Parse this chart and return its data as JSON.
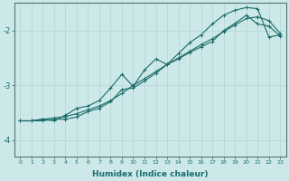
{
  "xlabel": "Humidex (Indice chaleur)",
  "background_color": "#cce8e8",
  "grid_color": "#b8d8d8",
  "line_color": "#1a6b6b",
  "xlim": [
    -0.5,
    23.5
  ],
  "ylim": [
    -4.3,
    -1.5
  ],
  "yticks": [
    -4,
    -3,
    -2
  ],
  "xticks": [
    0,
    1,
    2,
    3,
    4,
    5,
    6,
    7,
    8,
    9,
    10,
    11,
    12,
    13,
    14,
    15,
    16,
    17,
    18,
    19,
    20,
    21,
    22,
    23
  ],
  "line1_x": [
    0,
    1,
    2,
    3,
    4,
    5,
    6,
    7,
    8,
    9,
    10,
    11,
    12,
    13,
    14,
    15,
    16,
    17,
    18,
    19,
    20,
    21,
    22,
    23
  ],
  "line1_y": [
    -3.65,
    -3.65,
    -3.62,
    -3.6,
    -3.57,
    -3.52,
    -3.45,
    -3.38,
    -3.28,
    -3.15,
    -3.0,
    -2.88,
    -2.75,
    -2.62,
    -2.5,
    -2.38,
    -2.26,
    -2.15,
    -2.02,
    -1.9,
    -1.78,
    -1.75,
    -1.82,
    -2.05
  ],
  "line2_x": [
    0,
    1,
    2,
    3,
    4,
    5,
    6,
    7,
    8,
    9,
    10,
    11,
    12,
    13,
    14,
    15,
    16,
    17,
    18,
    19,
    20,
    21,
    22,
    23
  ],
  "line2_y": [
    -3.65,
    -3.65,
    -3.65,
    -3.62,
    -3.62,
    -3.58,
    -3.48,
    -3.42,
    -3.3,
    -3.08,
    -3.05,
    -2.92,
    -2.78,
    -2.62,
    -2.52,
    -2.4,
    -2.3,
    -2.2,
    -2.0,
    -1.87,
    -1.72,
    -1.88,
    -1.92,
    -2.1
  ],
  "line3_x": [
    0,
    1,
    2,
    3,
    4,
    5,
    6,
    7,
    8,
    9,
    10,
    11,
    12,
    13,
    14,
    15,
    16,
    17,
    18,
    19,
    20,
    21,
    22,
    23
  ],
  "line3_y": [
    -3.65,
    -3.65,
    -3.62,
    -3.65,
    -3.55,
    -3.42,
    -3.38,
    -3.28,
    -3.05,
    -2.8,
    -3.02,
    -2.72,
    -2.52,
    -2.62,
    -2.42,
    -2.22,
    -2.08,
    -1.88,
    -1.72,
    -1.63,
    -1.58,
    -1.6,
    -2.12,
    -2.08
  ]
}
